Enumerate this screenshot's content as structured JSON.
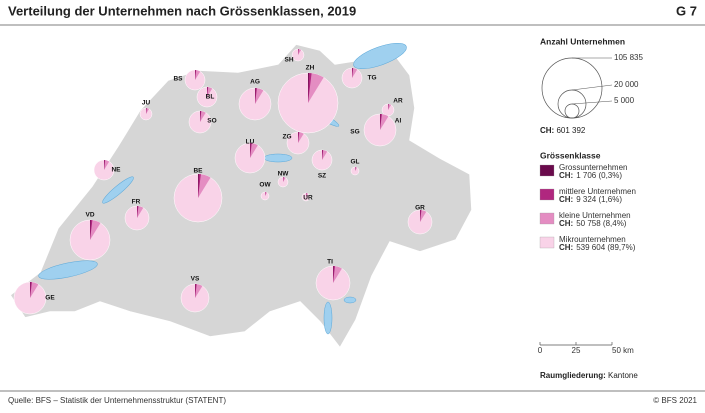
{
  "header": {
    "title": "Verteilung der Unternehmen nach Grössenklassen, 2019",
    "code": "G 7"
  },
  "map": {
    "cantons": [
      "SH",
      "ZH",
      "BS",
      "AG",
      "TG",
      "BL",
      "JU",
      "SO",
      "AR",
      "AI",
      "SG",
      "LU",
      "ZG",
      "NE",
      "SZ",
      "GL",
      "OW",
      "NW",
      "BE",
      "UR",
      "FR",
      "GR",
      "VD",
      "TI",
      "VS",
      "GE"
    ]
  },
  "legend": {
    "size_title": "Anzahl Unternehmen",
    "size_labels": [
      "105 835",
      "20 000",
      "5 000"
    ],
    "size_total": {
      "prefix": "CH:",
      "text": "601 392"
    },
    "class_title": "Grössenklasse",
    "classes": [
      {
        "name": "Grossunternehmen",
        "prefix": "CH:",
        "text": "1 706 (0,3%)",
        "color": "#6a0a4c"
      },
      {
        "name": "mittlere Unternehmen",
        "prefix": "CH:",
        "text": "9 324 (1,6%)",
        "color": "#b0277f"
      },
      {
        "name": "kleine Unternehmen",
        "prefix": "CH:",
        "text": "50 758 (8,4%)",
        "color": "#e48dc2"
      },
      {
        "name": "Mikrounternehmen",
        "prefix": "CH:",
        "text": "539 604 (89,7%)",
        "color": "#f9d3e8"
      }
    ],
    "scale": [
      "0",
      "25",
      "50 km"
    ],
    "division": {
      "prefix": "Raumgliederung:",
      "text": "Kantone"
    }
  },
  "footer": {
    "source": "Quelle: BFS – Statistik der Unternehmensstruktur (STATENT)",
    "copyright": "© BFS 2021"
  }
}
